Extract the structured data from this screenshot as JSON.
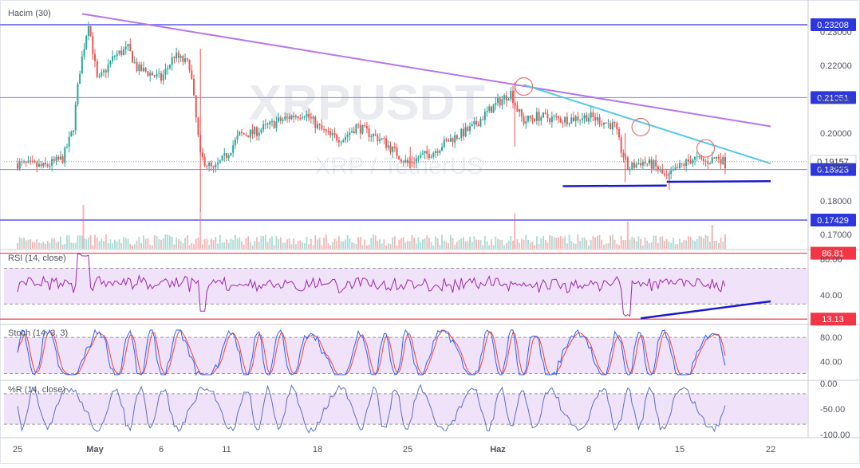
{
  "chart_data": {
    "type": "candlestick",
    "watermark": {
      "symbol": "XRPUSDT",
      "description": "XRP / TetherUS"
    },
    "volume_label": "Hacim (30)",
    "colors": {
      "up": "#26a69a",
      "down": "#ef5350",
      "hline": "#8080f0",
      "trend_long": "#b675e8",
      "trend_short": "#55c8e6",
      "support": "#1a1acc",
      "current": "#333333",
      "rsi_line": "#9c27b0",
      "stoch_k": "#2962ff",
      "stoch_d": "#f44336",
      "wr_line": "#5a6fc8",
      "label_blue": "#2d37e0",
      "label_red": "#f23645",
      "band_fill": "#e9d5f5"
    },
    "x_ticks": [
      "25",
      "May",
      "6",
      "11",
      "18",
      "25",
      "Haz",
      "8",
      "15",
      "22"
    ],
    "price_axis": {
      "ticks": [
        "0.23000",
        "0.22000",
        "0.21000",
        "0.20000",
        "0.19000",
        "0.18000",
        "0.17000"
      ],
      "ylim": [
        0.1658,
        0.2375
      ]
    },
    "price_levels": [
      {
        "value": 0.23208,
        "label": "0.23208",
        "style": "blue"
      },
      {
        "value": 0.21051,
        "label": "0.21051",
        "style": "blue"
      },
      {
        "value": 0.19157,
        "label": "0.19157",
        "style": "current"
      },
      {
        "value": 0.18923,
        "label": "0.18923",
        "style": "blue"
      },
      {
        "value": 0.17429,
        "label": "0.17429",
        "style": "blue"
      }
    ],
    "trendlines": [
      {
        "kind": "long",
        "from": [
          "Apr 30",
          0.2353
        ],
        "to": [
          "Jun 22",
          0.202
        ]
      },
      {
        "kind": "short",
        "from": [
          "Jun 3",
          0.2143
        ],
        "to": [
          "Jun 22",
          0.191
        ]
      },
      {
        "kind": "support",
        "from": [
          "Jun 6",
          0.1843
        ],
        "to": [
          "Jun 14",
          0.1845
        ]
      },
      {
        "kind": "support",
        "from": [
          "Jun 14",
          0.1856
        ],
        "to": [
          "Jun 22",
          0.1858
        ]
      }
    ],
    "circles": [
      {
        "date": "Jun 3",
        "value": 0.2138
      },
      {
        "date": "Jun 12",
        "value": 0.2018
      },
      {
        "date": "Jun 17",
        "value": 0.1955
      }
    ],
    "rsi": {
      "label": "RSI (14, close)",
      "ticks": [
        "80.00",
        "40.00"
      ],
      "ylim": [
        8,
        90
      ],
      "upper_band": 70,
      "lower_band": 30,
      "levels": [
        {
          "value": 86.81,
          "label": "86.81"
        },
        {
          "value": 13.13,
          "label": "13.13"
        }
      ],
      "trendline": {
        "from": [
          "Jun 12",
          14
        ],
        "to": [
          "Jun 22",
          33
        ]
      }
    },
    "stoch": {
      "label": "Stoch (14, 3, 3)",
      "ticks": [
        "80.00",
        "40.00"
      ],
      "ylim": [
        10,
        100
      ],
      "upper_band": 80,
      "lower_band": 20
    },
    "williams_r": {
      "label": "%R (14, close)",
      "ticks": [
        "0.00",
        "-50.00",
        "-100.00"
      ],
      "ylim": [
        -105,
        5
      ],
      "upper_band": -20,
      "lower_band": -80
    }
  }
}
